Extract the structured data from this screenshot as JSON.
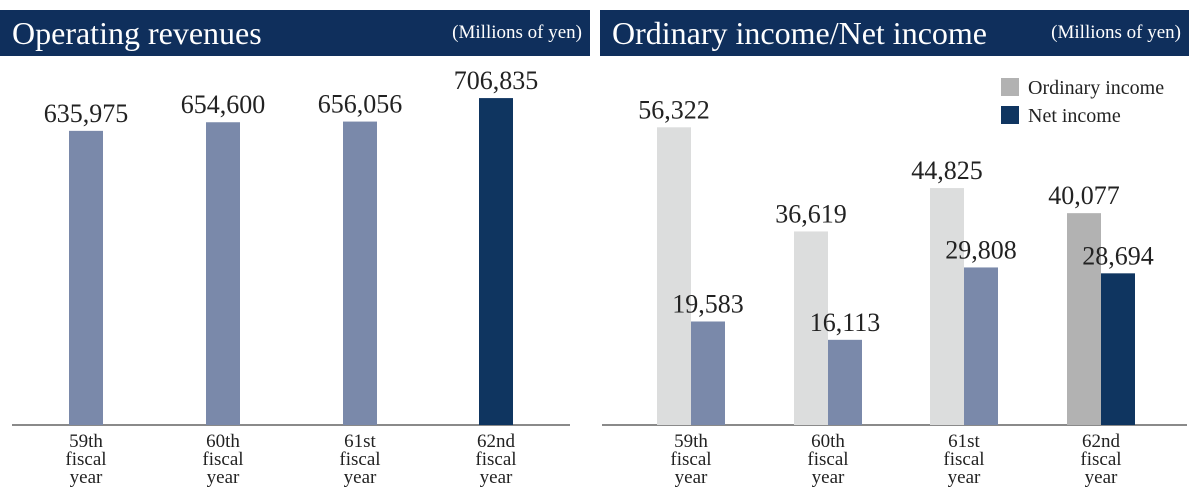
{
  "left_header": {
    "title": "Operating revenues",
    "unit": "(Millions of yen)"
  },
  "right_header": {
    "title": "Ordinary income/Net income",
    "unit": "(Millions of yen)"
  },
  "chart_data": [
    {
      "type": "bar",
      "title": "Operating revenues",
      "unit": "(Millions of yen)",
      "categories": [
        [
          "59th",
          "fiscal",
          "year"
        ],
        [
          "60th",
          "fiscal",
          "year"
        ],
        [
          "61st",
          "fiscal",
          "year"
        ],
        [
          "62nd",
          "fiscal",
          "year"
        ]
      ],
      "values": [
        635975,
        654600,
        656056,
        706835
      ],
      "value_labels": [
        "635,975",
        "654,600",
        "656,056",
        "706,835"
      ],
      "bar_colors": [
        "#7a89aa",
        "#7a89aa",
        "#7a89aa",
        "#0f3560"
      ],
      "ylim": [
        0,
        800000
      ]
    },
    {
      "type": "bar",
      "title": "Ordinary income/Net income",
      "unit": "(Millions of yen)",
      "categories": [
        [
          "59th",
          "fiscal",
          "year"
        ],
        [
          "60th",
          "fiscal",
          "year"
        ],
        [
          "61st",
          "fiscal",
          "year"
        ],
        [
          "62nd",
          "fiscal",
          "year"
        ]
      ],
      "series": [
        {
          "name": "Ordinary income",
          "values": [
            56322,
            36619,
            44825,
            40077
          ],
          "value_labels": [
            "56,322",
            "36,619",
            "44,825",
            "40,077"
          ],
          "colors": [
            "#dcdddd",
            "#dcdddd",
            "#dcdddd",
            "#b2b2b2"
          ]
        },
        {
          "name": "Net income",
          "values": [
            19583,
            16113,
            29808,
            28694
          ],
          "value_labels": [
            "19,583",
            "16,113",
            "29,808",
            "28,694"
          ],
          "colors": [
            "#7a89aa",
            "#7a89aa",
            "#7a89aa",
            "#0f3560"
          ]
        }
      ],
      "legend": {
        "placement": "top-right",
        "items": [
          {
            "label": "Ordinary income",
            "color": "#b2b2b2"
          },
          {
            "label": "Net income",
            "color": "#0f3560"
          }
        ]
      },
      "ylim": [
        0,
        70000
      ]
    }
  ]
}
